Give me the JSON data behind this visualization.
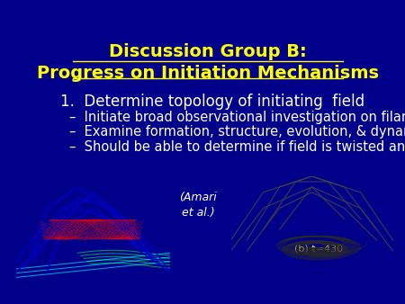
{
  "background_color": "#00008B",
  "title_line1": "Discussion Group B:",
  "title_line2": "Progress on Initiation Mechanisms",
  "title_color": "#FFFF00",
  "title_fontsize": 14,
  "bullet_color": "#FFFFFF",
  "main_bullet": "1.  Determine topology of initiating  field",
  "main_bullet_fontsize": 12,
  "sub_bullets": [
    "–  Initiate broad observational investigation on filament  fields",
    "–  Examine formation, structure, evolution, & dynamics",
    "–  Should be able to determine if field is twisted and how much"
  ],
  "sub_bullet_fontsize": 10.5,
  "amari_label": "(Amari\net al.)",
  "amari_label_color": "#FFFFFF",
  "amari_label_fontsize": 9,
  "caption_label": "(b) t=430",
  "caption_label_color": "#FFFF00",
  "caption_label_fontsize": 8
}
